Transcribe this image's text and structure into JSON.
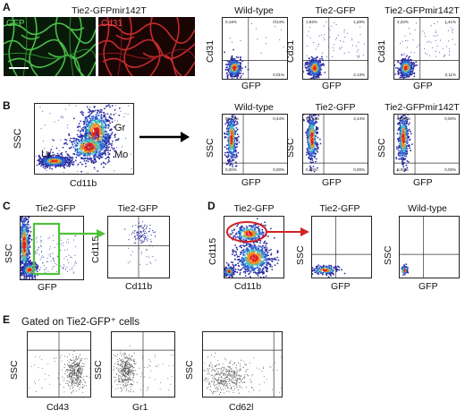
{
  "figure": {
    "panels": {
      "A": {
        "letter": "A",
        "image_title": "Tie2-GFPmir142T",
        "image_labels": [
          "GFP",
          "Cd31"
        ],
        "plots": [
          {
            "title": "Wild-type",
            "x": "GFP",
            "y": "Cd31",
            "q_ul": "0,14%",
            "q_ur": "0,14%",
            "q_lr": "0,01%"
          },
          {
            "title": "Tie2-GFP",
            "x": "GFP",
            "y": "Cd31",
            "q_ul": "1,94%",
            "q_ur": "1,28%",
            "q_lr": "2,13%"
          },
          {
            "title": "Tie2-GFPmir142T",
            "x": "GFP",
            "y": "Cd31",
            "q_ul": "2,22%",
            "q_ur": "1,41%",
            "q_lr": "0,11%"
          }
        ]
      },
      "B": {
        "letter": "B",
        "gates": [
          "Ly",
          "Gr",
          "Mo"
        ],
        "x": "Cd11b",
        "y": "SSC",
        "plots": [
          {
            "title": "Wild-type",
            "x": "GFP",
            "y": "SSC",
            "q_ul": "99,44%",
            "q_ur": "0,44%",
            "q_ll": "0,00%",
            "q_lr": "0,00%"
          },
          {
            "title": "Tie2-GFP",
            "x": "GFP",
            "y": "SSC",
            "q_ul": "97,13%",
            "q_ur": "2,44%",
            "q_ll": "0,00%",
            "q_lr": "0,00%"
          },
          {
            "title": "Tie2-GFPmir142T",
            "x": "GFP",
            "y": "SSC",
            "q_ul": "99,90%",
            "q_ur": "0,00%",
            "q_ll": "0,00%",
            "q_lr": "0,00%"
          }
        ]
      },
      "C": {
        "letter": "C",
        "plots": [
          {
            "title": "Tie2-GFP",
            "x": "GFP",
            "y": "SSC"
          },
          {
            "title": "Tie2-GFP",
            "x": "Cd11b",
            "y": "Cd115"
          }
        ]
      },
      "D": {
        "letter": "D",
        "plots": [
          {
            "title": "Tie2-GFP",
            "x": "Cd11b",
            "y": "Cd115"
          },
          {
            "title": "Tie2-GFP",
            "x": "GFP",
            "y": "SSC"
          },
          {
            "title": "Wild-type",
            "x": "GFP",
            "y": "SSC"
          }
        ]
      },
      "E": {
        "letter": "E",
        "heading": "Gated on Tie2-GFP⁺ cells",
        "plots": [
          {
            "x": "Cd43",
            "y": "SSC"
          },
          {
            "x": "Gr1",
            "y": "SSC"
          },
          {
            "x": "Cd62l",
            "y": "SSC"
          }
        ]
      }
    },
    "colors": {
      "gfp_green": "#3fbf3f",
      "cd31_red": "#d42a2a",
      "gate_green": "#4fc23a",
      "gate_red": "#d22222",
      "arrow_green": "#4fc23a",
      "arrow_red": "#d22222",
      "dot_blue": "#2c2ca0"
    }
  }
}
